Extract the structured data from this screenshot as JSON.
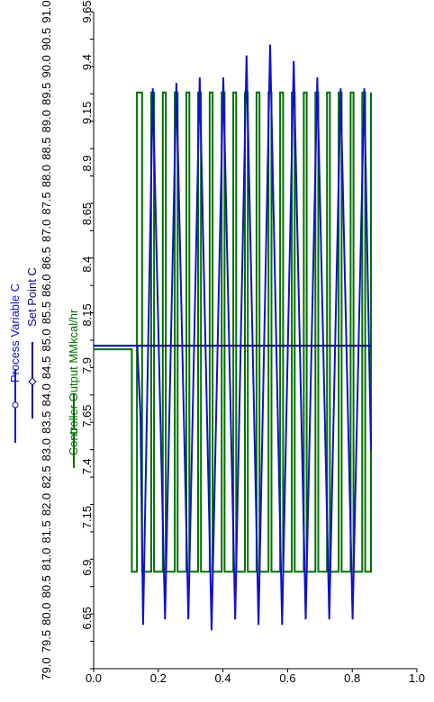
{
  "chart_data": {
    "type": "line",
    "x_axis": {
      "ticks": [
        "0.0",
        "0.2",
        "0.4",
        "0.6",
        "0.8",
        "1.0"
      ],
      "range": [
        0,
        1.0
      ]
    },
    "left_axis": {
      "ticks": [
        "79.0",
        "79.5",
        "80.0",
        "80.5",
        "81.0",
        "81.5",
        "82.0",
        "82.5",
        "83.0",
        "83.5",
        "84.0",
        "84.5",
        "85.0",
        "85.5",
        "86.0",
        "86.5",
        "87.0",
        "87.5",
        "88.0",
        "88.5",
        "89.0",
        "89.5",
        "90.0",
        "90.5",
        "91.0"
      ],
      "range": [
        79.0,
        91.0
      ]
    },
    "right_axis": {
      "ticks": [
        "6.65",
        "6.9",
        "7.15",
        "7.4",
        "7.65",
        "7.9",
        "8.15",
        "8.4",
        "8.65",
        "8.9",
        "9.15",
        "9.4",
        "9.65"
      ],
      "range": [
        6.4,
        9.65
      ]
    },
    "series": [
      {
        "name": "Process Variable C",
        "axis": "left",
        "color": "#1010d0",
        "peaks": [
          {
            "x": 0.153,
            "y": 79.8
          },
          {
            "x": 0.183,
            "y": 89.6
          },
          {
            "x": 0.221,
            "y": 79.9
          },
          {
            "x": 0.256,
            "y": 89.7
          },
          {
            "x": 0.293,
            "y": 79.9
          },
          {
            "x": 0.328,
            "y": 89.8
          },
          {
            "x": 0.365,
            "y": 79.7
          },
          {
            "x": 0.401,
            "y": 89.8
          },
          {
            "x": 0.438,
            "y": 79.9
          },
          {
            "x": 0.473,
            "y": 90.2
          },
          {
            "x": 0.51,
            "y": 79.8
          },
          {
            "x": 0.546,
            "y": 90.4
          },
          {
            "x": 0.583,
            "y": 79.8
          },
          {
            "x": 0.619,
            "y": 90.1
          },
          {
            "x": 0.656,
            "y": 79.9
          },
          {
            "x": 0.692,
            "y": 89.8
          },
          {
            "x": 0.729,
            "y": 79.9
          },
          {
            "x": 0.764,
            "y": 89.6
          },
          {
            "x": 0.801,
            "y": 79.9
          },
          {
            "x": 0.837,
            "y": 89.6
          },
          {
            "x": 0.858,
            "y": 83.0
          }
        ]
      },
      {
        "name": "Set Point C",
        "axis": "left",
        "color": "#000080",
        "points": [
          {
            "x": 0.0,
            "y": 84.9
          },
          {
            "x": 0.858,
            "y": 84.9
          }
        ]
      },
      {
        "name": "Controller Output MMkcal/hr",
        "axis": "right",
        "color": "#007000",
        "levels": {
          "initial": 7.98,
          "high": 9.25,
          "low": 6.88
        },
        "switch_times": [
          0.118,
          0.134,
          0.15,
          0.178,
          0.187,
          0.214,
          0.223,
          0.251,
          0.26,
          0.287,
          0.296,
          0.323,
          0.332,
          0.359,
          0.368,
          0.396,
          0.405,
          0.432,
          0.441,
          0.468,
          0.477,
          0.504,
          0.513,
          0.541,
          0.55,
          0.577,
          0.586,
          0.613,
          0.622,
          0.65,
          0.659,
          0.686,
          0.695,
          0.722,
          0.731,
          0.758,
          0.767,
          0.795,
          0.804,
          0.831,
          0.84,
          0.858
        ],
        "end_x": 0.858
      }
    ]
  }
}
